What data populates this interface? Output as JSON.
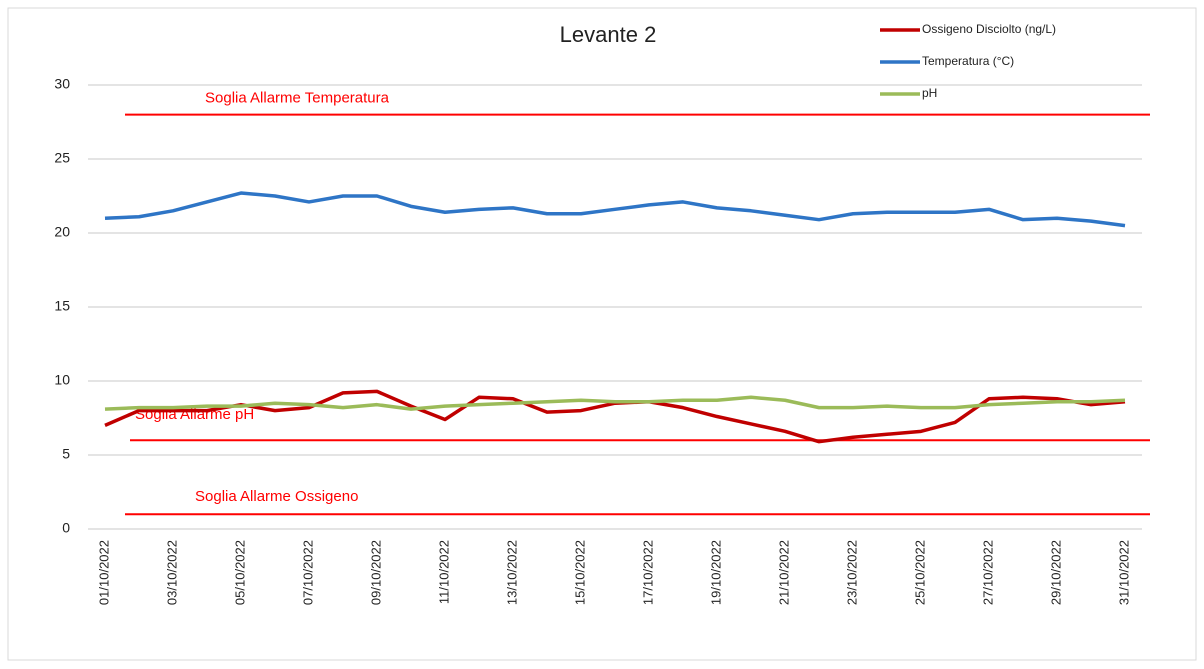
{
  "chart_data": {
    "type": "line",
    "title": "Levante 2",
    "categories": [
      "01/10/2022",
      null,
      "03/10/2022",
      null,
      "05/10/2022",
      null,
      "07/10/2022",
      null,
      "09/10/2022",
      null,
      "11/10/2022",
      null,
      "13/10/2022",
      null,
      "15/10/2022",
      null,
      "17/10/2022",
      null,
      "19/10/2022",
      null,
      "21/10/2022",
      null,
      "23/10/2022",
      null,
      "25/10/2022",
      null,
      "27/10/2022",
      null,
      "29/10/2022",
      null,
      "31/10/2022"
    ],
    "series": [
      {
        "name": "Ossigeno  Disciolto (ng/L)",
        "color": "#c00000",
        "values": [
          7.0,
          8.0,
          8.0,
          8.0,
          8.4,
          8.0,
          8.2,
          9.2,
          9.3,
          8.3,
          7.4,
          8.9,
          8.8,
          7.9,
          8.0,
          8.5,
          8.6,
          8.2,
          7.6,
          7.1,
          6.6,
          5.9,
          6.2,
          6.4,
          6.6,
          7.2,
          8.8,
          8.9,
          8.8,
          8.4,
          8.6
        ]
      },
      {
        "name": "Temperatura (°C)",
        "color": "#2e75c6",
        "values": [
          21.0,
          21.1,
          21.5,
          22.1,
          22.7,
          22.5,
          22.1,
          22.5,
          22.5,
          21.8,
          21.4,
          21.6,
          21.7,
          21.3,
          21.3,
          21.6,
          21.9,
          22.1,
          21.7,
          21.5,
          21.2,
          20.9,
          21.3,
          21.4,
          21.4,
          21.4,
          21.6,
          20.9,
          21.0,
          20.8,
          20.5
        ]
      },
      {
        "name": "pH",
        "color": "#9bbb59",
        "values": [
          8.1,
          8.2,
          8.2,
          8.3,
          8.3,
          8.5,
          8.4,
          8.2,
          8.4,
          8.1,
          8.3,
          8.4,
          8.5,
          8.6,
          8.7,
          8.6,
          8.6,
          8.7,
          8.7,
          8.9,
          8.7,
          8.2,
          8.2,
          8.3,
          8.2,
          8.2,
          8.4,
          8.5,
          8.6,
          8.6,
          8.7
        ]
      }
    ],
    "thresholds": [
      {
        "label": "Soglia Allarme Temperatura",
        "value": 28,
        "color": "#ff0000"
      },
      {
        "label": "Soglia  Allarme pH",
        "value": 6,
        "color": "#ff0000"
      },
      {
        "label": "Soglia  Allarme Ossigeno",
        "value": 1,
        "color": "#ff0000"
      }
    ],
    "ylim": [
      0,
      32
    ],
    "yticks": [
      0,
      5,
      10,
      15,
      20,
      25,
      30
    ],
    "grid": true
  }
}
